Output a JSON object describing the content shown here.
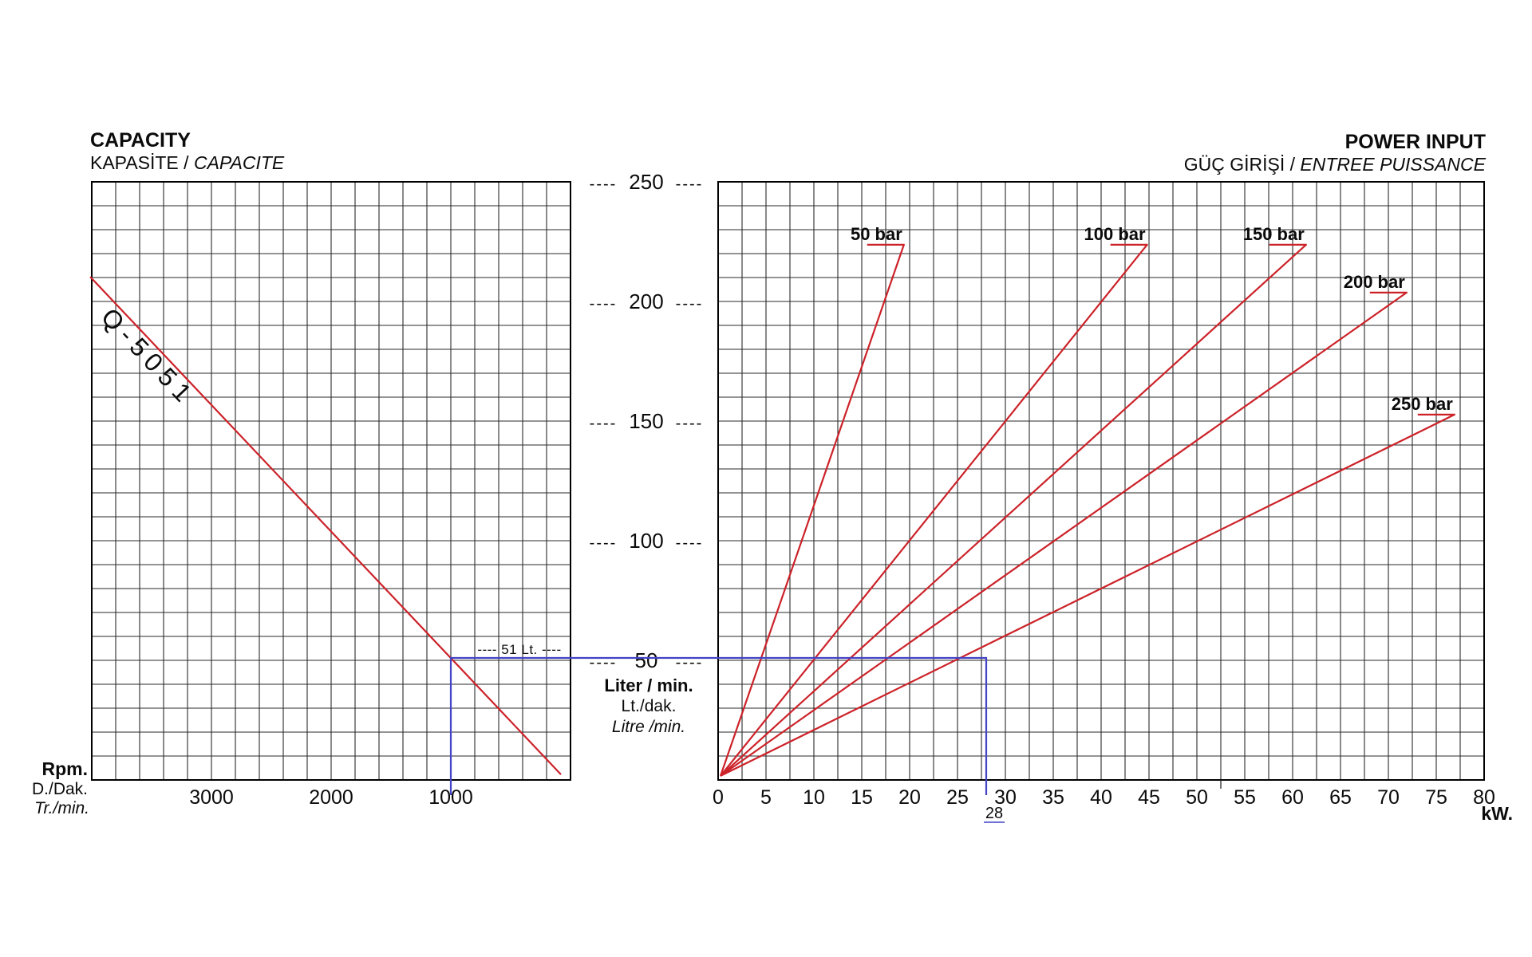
{
  "titles": {
    "capacity": {
      "line1": "CAPACITY",
      "line2_main": "KAPASİTE / ",
      "line2_italic": "CAPACITE"
    },
    "power": {
      "line1": "POWER INPUT",
      "line2_main": "GÜÇ GİRİŞİ / ",
      "line2_italic": "ENTREE PUISSANCE"
    }
  },
  "colors": {
    "line_red": "#cc2229",
    "annotation_blue": "#4343c6",
    "grid": "#2a2a2a",
    "border": "#000000",
    "text": "#0b0b0b"
  },
  "chart_data": {
    "type": "line",
    "scale_dash": "----",
    "charts": [
      {
        "name": "capacity",
        "title": "CAPACITY",
        "x": {
          "label_lines": [
            "Rpm.",
            "D./Dak.",
            "Tr./min."
          ],
          "ticks": [
            3000,
            2000,
            1000
          ],
          "min": 0,
          "max": 4000,
          "reversed": true,
          "grid_step_rpm": 200
        },
        "y": {
          "label_lines": [
            "Liter / min.",
            "Lt./dak.",
            "Litre /min."
          ],
          "ticks": [
            250,
            200,
            150,
            100,
            50
          ],
          "min": 0,
          "max": 250,
          "grid_step_lt": 10
        },
        "series": [
          {
            "name": "Q-5051",
            "points_rpm_lt": [
              [
                4013,
                210.3
              ],
              [
                80,
                2.3
              ]
            ]
          }
        ]
      },
      {
        "name": "power_input",
        "title": "POWER INPUT",
        "x": {
          "label": "kW.",
          "ticks": [
            0,
            5,
            10,
            15,
            20,
            25,
            30,
            35,
            40,
            45,
            50,
            55,
            60,
            65,
            70,
            75,
            80
          ],
          "min": 0,
          "max": 80,
          "grid_step_kw": 2.5
        },
        "y": {
          "shared_with": "capacity",
          "min": 0,
          "max": 250
        },
        "series": [
          {
            "name": "50 bar",
            "points_kw_lt": [
              [
                0.25,
                1.7
              ],
              [
                19.4,
                223.7
              ]
            ]
          },
          {
            "name": "100 bar",
            "points_kw_lt": [
              [
                0.25,
                1.7
              ],
              [
                44.8,
                223.7
              ]
            ]
          },
          {
            "name": "150 bar",
            "points_kw_lt": [
              [
                0.25,
                1.7
              ],
              [
                61.4,
                223.7
              ]
            ]
          },
          {
            "name": "200 bar",
            "points_kw_lt": [
              [
                0.25,
                1.7
              ],
              [
                71.9,
                203.7
              ]
            ]
          },
          {
            "name": "250 bar",
            "points_kw_lt": [
              [
                0.25,
                1.7
              ],
              [
                76.9,
                152.7
              ]
            ]
          }
        ]
      }
    ],
    "annotation": {
      "rpm": 1000,
      "liters": 51,
      "liters_text": "51 Lt.",
      "kw": 28,
      "kw_text": "28"
    }
  }
}
